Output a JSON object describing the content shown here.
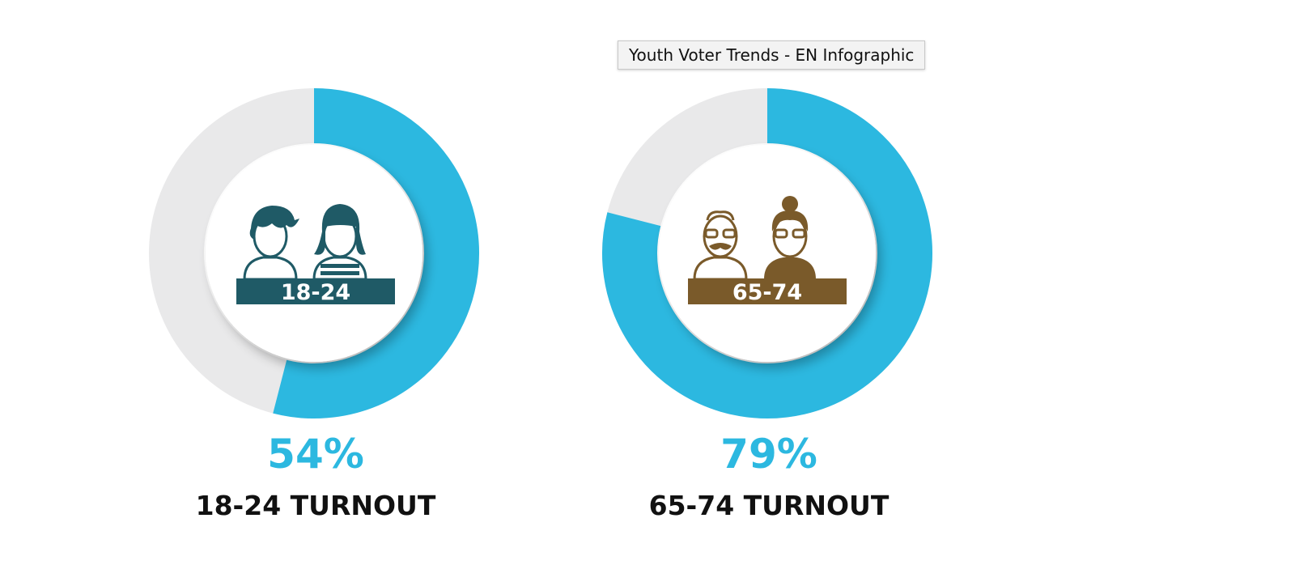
{
  "tooltip": {
    "text": "Youth Voter Trends - EN Infographic"
  },
  "colors": {
    "accent": "#2cb8e0",
    "track": "#e9e9ea",
    "youth_icon": "#1f5a66",
    "senior_icon": "#7a5a2a"
  },
  "chart_data": [
    {
      "type": "pie",
      "variant": "donut",
      "values": [
        54,
        46
      ],
      "value_label": "54%",
      "label": "18-24 TURNOUT",
      "icon_badge": "18-24",
      "icon": "young-couple-icon"
    },
    {
      "type": "pie",
      "variant": "donut",
      "values": [
        79,
        21
      ],
      "value_label": "79%",
      "label": "65-74 TURNOUT",
      "icon_badge": "65-74",
      "icon": "senior-couple-icon"
    }
  ]
}
